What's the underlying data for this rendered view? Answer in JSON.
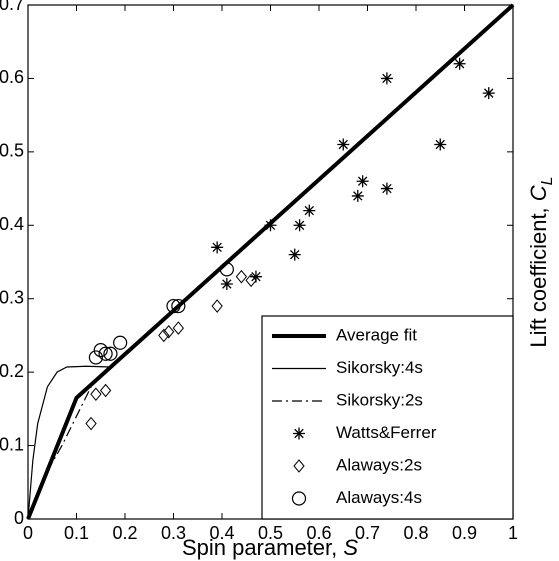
{
  "chart_data": {
    "type": "line",
    "xlabel": "Spin parameter, ",
    "xlabel_symbol": "S",
    "ylabel": "Lift coefficient, ",
    "ylabel_symbol": "C",
    "ylabel_subscript": "L",
    "xlim": [
      0,
      1
    ],
    "ylim": [
      0,
      0.7
    ],
    "xticks": [
      0,
      0.1,
      0.2,
      0.3,
      0.4,
      0.5,
      0.6,
      0.7,
      0.8,
      0.9,
      1
    ],
    "yticks": [
      0,
      0.1,
      0.2,
      0.3,
      0.4,
      0.5,
      0.6,
      0.7
    ],
    "legend": "lower right",
    "series": [
      {
        "name": "Average fit",
        "color": "#000000",
        "style": "solid",
        "width": 4,
        "x": [
          0,
          0.1,
          1
        ],
        "values": [
          0,
          0.165,
          0.7
        ]
      },
      {
        "name": "Sikorsky:4s",
        "color": "#000000",
        "style": "solid",
        "width": 1.2,
        "x": [
          0,
          0.01,
          0.02,
          0.04,
          0.06,
          0.08,
          0.12,
          0.17
        ],
        "values": [
          0,
          0.08,
          0.13,
          0.18,
          0.2,
          0.207,
          0.208,
          0.207
        ]
      },
      {
        "name": "Sikorsky:2s",
        "color": "#000000",
        "style": "dashdot",
        "width": 1.2,
        "x": [
          0.04,
          0.07,
          0.1,
          0.13
        ],
        "values": [
          0.065,
          0.1,
          0.14,
          0.18
        ]
      },
      {
        "name": "Watts&Ferrer",
        "color": "#000000",
        "marker": "star",
        "x": [
          0.39,
          0.41,
          0.47,
          0.5,
          0.55,
          0.56,
          0.58,
          0.65,
          0.68,
          0.69,
          0.74,
          0.74,
          0.85,
          0.89,
          0.95
        ],
        "values": [
          0.37,
          0.32,
          0.33,
          0.4,
          0.36,
          0.4,
          0.42,
          0.51,
          0.44,
          0.46,
          0.6,
          0.45,
          0.51,
          0.62,
          0.58
        ]
      },
      {
        "name": "Alaways:2s",
        "color": "#000000",
        "marker": "diamond",
        "x": [
          0.13,
          0.14,
          0.16,
          0.28,
          0.29,
          0.31,
          0.39,
          0.44,
          0.46
        ],
        "values": [
          0.13,
          0.17,
          0.175,
          0.25,
          0.255,
          0.26,
          0.29,
          0.33,
          0.325
        ]
      },
      {
        "name": "Alaways:4s",
        "color": "#000000",
        "marker": "circle",
        "x": [
          0.14,
          0.15,
          0.16,
          0.17,
          0.19,
          0.3,
          0.31,
          0.41
        ],
        "values": [
          0.22,
          0.23,
          0.225,
          0.225,
          0.24,
          0.29,
          0.29,
          0.34
        ]
      }
    ]
  }
}
